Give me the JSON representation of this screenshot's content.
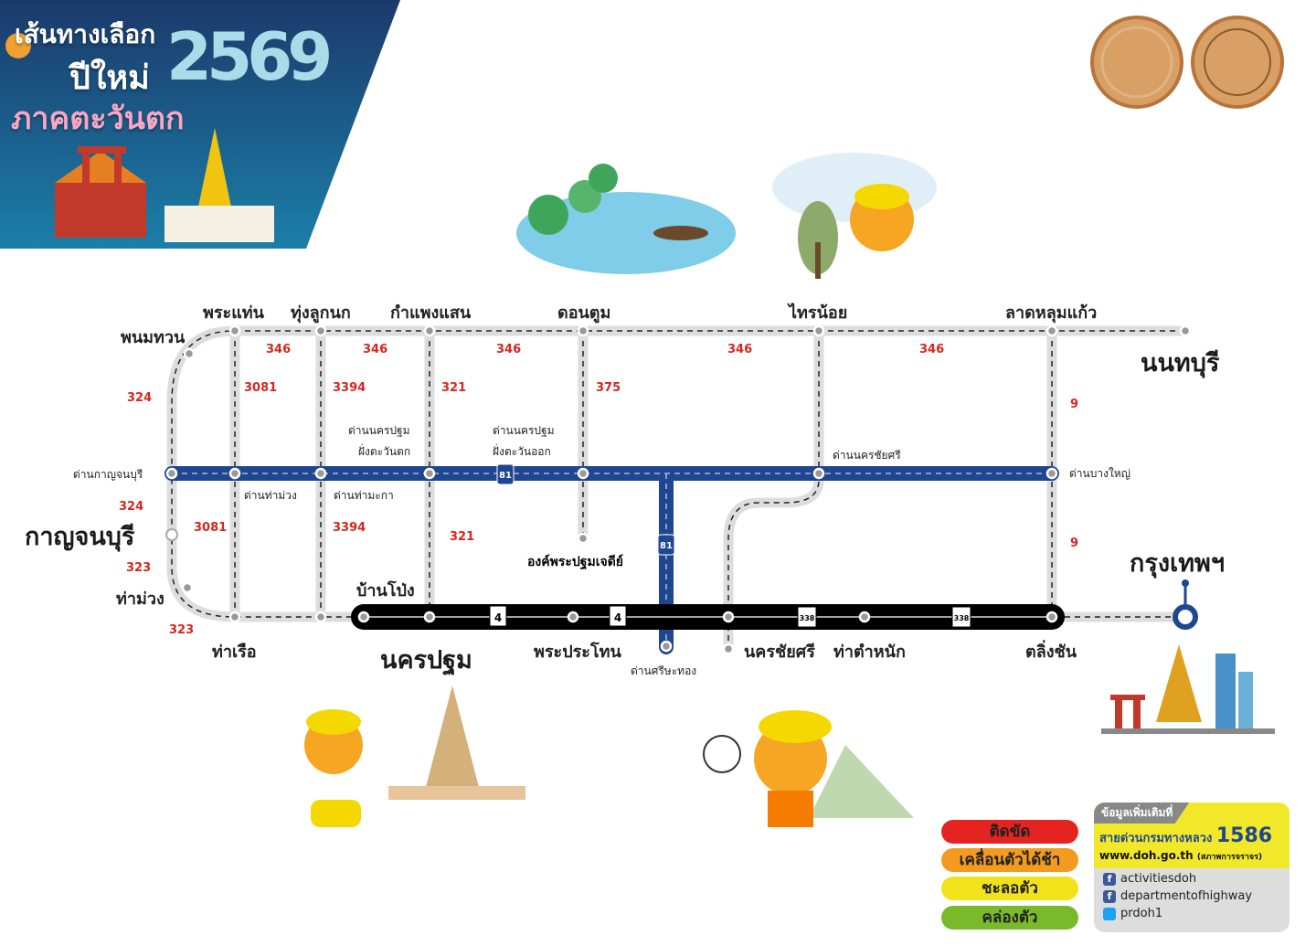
{
  "header": {
    "line1": "เส้นทางเลือก",
    "line2": "ปีใหม่",
    "line3": "ภาคตะวันตก",
    "year": "2569"
  },
  "provinces": {
    "kanchanaburi": "กาญจนบุรี",
    "nonthaburi": "นนทบุรี",
    "bangkok": "กรุงเทพฯ",
    "nakhon_pathom": "นครปฐม"
  },
  "places": {
    "phra_thaen": "พระแท่น",
    "thung_luk_nok": "ทุ่งลูกนก",
    "kamphaeng_saen": "กำแพงแสน",
    "don_tum": "ดอนตูม",
    "sai_noi": "ไทรน้อย",
    "lat_lum_kaeo": "ลาดหลุมแก้ว",
    "phanom_thuan": "พนมทวน",
    "tha_muang": "ท่าม่วง",
    "tha_ruea": "ท่าเรือ",
    "ban_pong": "บ้านโป่ง",
    "phra_prathon": "พระประโทน",
    "nakhon_chai_si": "นครชัยศรี",
    "tha_tamnak": "ท่าตำหนัก",
    "taling_chan": "ตลิ่งชัน",
    "phra_pathom_chedi": "องค์พระปฐมเจดีย์"
  },
  "tolls": {
    "kanchanaburi": "ด่านกาญจนบุรี",
    "np_west_1": "ด่านนครปฐม",
    "np_west_2": "ฝั่งตะวันตก",
    "np_east_1": "ด่านนครปฐม",
    "np_east_2": "ฝั่งตะวันออก",
    "nakhon_chai_si": "ด่านนครชัยศรี",
    "bang_yai": "ด่านบางใหญ่",
    "tha_muang": "ด่านท่าม่วง",
    "tha_maka": "ด่านท่ามะกา",
    "si_sa_thong": "ด่านศรีษะทอง"
  },
  "routes": {
    "r346": "346",
    "r324": "324",
    "r3081": "3081",
    "r3394": "3394",
    "r321": "321",
    "r375": "375",
    "r9": "9",
    "r323": "323",
    "r81": "81",
    "r4": "4",
    "r338": "338"
  },
  "legend": [
    {
      "label": "ติดขัด",
      "color": "#e52421"
    },
    {
      "label": "เคลื่อนตัวได้ช้า",
      "color": "#f39a1f"
    },
    {
      "label": "ชะลอตัว",
      "color": "#f2e21a"
    },
    {
      "label": "คล่องตัว",
      "color": "#7ab929"
    }
  ],
  "info": {
    "tag": "ข้อมูลเพิ่มเติมที่",
    "hotline_label": "สายด่วนกรมทางหลวง",
    "hotline": "1586",
    "website": "www.doh.go.th",
    "website_note": "(สภาพการจราจร)",
    "facebook1": "activitiesdoh",
    "facebook2": "departmentofhighway",
    "twitter": "prdoh1"
  },
  "colors": {
    "motorway": "#1f4690",
    "main_road": "#000000",
    "alt_road": "#dddddd",
    "route_number": "#d7261e"
  }
}
